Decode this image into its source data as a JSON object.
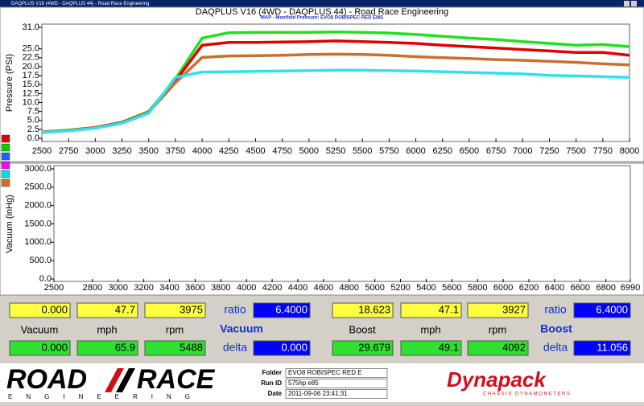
{
  "window_title": "DAQPLUS V16 (4WD - DAQPLUS 44) - Road Race Engineering",
  "chart_data": [
    {
      "type": "line",
      "title": "DAQPLUS V16 (4WD - DAQPLUS 44) - Road Race Engineering",
      "subtitle": "MAP - Manifold Pressure: EVO8 ROBISPEC RED EMS",
      "y_label": "Pressure (PSI)",
      "xlim": [
        2500,
        8000
      ],
      "ylim": [
        0,
        31
      ],
      "xticks": [
        2500,
        2750,
        3000,
        3250,
        3500,
        3750,
        4000,
        4250,
        4500,
        4750,
        5000,
        5250,
        5500,
        5750,
        6000,
        6250,
        6500,
        6750,
        7000,
        7250,
        7500,
        7750,
        8000
      ],
      "yticks": [
        {
          "value": 0,
          "label": "0.0"
        },
        {
          "value": 2.5,
          "label": "2.5"
        },
        {
          "value": 5,
          "label": "5.0"
        },
        {
          "value": 7.5,
          "label": "7.5"
        },
        {
          "value": 10,
          "label": "10.0"
        },
        {
          "value": 12.5,
          "label": "12.5"
        },
        {
          "value": 15,
          "label": "15.0"
        },
        {
          "value": 17.5,
          "label": "17.5"
        },
        {
          "value": 20,
          "label": "20.0"
        },
        {
          "value": 22.5,
          "label": "22.5"
        },
        {
          "value": 25,
          "label": "25.0"
        },
        {
          "value": 31,
          "label": "31.0"
        }
      ],
      "legend_colors": [
        "#e00000",
        "#00d000",
        "#2060ff",
        "#ff00ff",
        "#00e0e0",
        "#d07020"
      ],
      "x": [
        2500,
        2750,
        3000,
        3250,
        3500,
        3750,
        4000,
        4250,
        4500,
        4750,
        5000,
        5250,
        5500,
        5750,
        6000,
        6250,
        6500,
        6750,
        7000,
        7250,
        7500,
        7750,
        8000
      ],
      "series": [
        {
          "color": "#20e020",
          "values": [
            1.8,
            2.3,
            3.0,
            4.5,
            7.5,
            16.5,
            28.0,
            29.5,
            29.6,
            29.6,
            29.6,
            29.7,
            29.6,
            29.4,
            29.0,
            28.5,
            28.0,
            27.6,
            27.0,
            26.5,
            26.0,
            26.2,
            25.6
          ]
        },
        {
          "color": "#e00000",
          "values": [
            1.7,
            2.2,
            3.0,
            4.4,
            7.3,
            16.0,
            26.0,
            26.8,
            26.8,
            26.9,
            27.0,
            27.2,
            27.0,
            26.8,
            26.5,
            26.0,
            25.6,
            25.2,
            24.8,
            24.4,
            24.0,
            24.0,
            23.2
          ]
        },
        {
          "color": "#c87030",
          "values": [
            1.7,
            2.2,
            2.9,
            4.3,
            7.2,
            15.5,
            22.6,
            23.0,
            23.1,
            23.2,
            23.4,
            23.5,
            23.4,
            23.2,
            22.8,
            22.5,
            22.3,
            22.0,
            21.8,
            21.5,
            21.2,
            20.8,
            20.5
          ]
        },
        {
          "color": "#30e0f0",
          "values": [
            1.6,
            2.1,
            2.8,
            4.2,
            7.0,
            17.0,
            18.5,
            18.6,
            18.7,
            18.8,
            18.9,
            19.0,
            19.0,
            18.9,
            18.8,
            18.6,
            18.4,
            18.2,
            18.0,
            17.6,
            17.4,
            17.2,
            17.0
          ]
        }
      ]
    },
    {
      "type": "line",
      "y_label": "Vacuum (inHg)",
      "xlim": [
        2500,
        6990
      ],
      "ylim": [
        0,
        3000
      ],
      "xticks": [
        2500,
        2800,
        3000,
        3200,
        3400,
        3600,
        3800,
        4000,
        4200,
        4400,
        4600,
        4800,
        5000,
        5200,
        5400,
        5600,
        5800,
        6000,
        6200,
        6400,
        6600,
        6800,
        6990
      ],
      "yticks": [
        {
          "value": 0,
          "label": "0.0"
        },
        {
          "value": 500,
          "label": "500.0"
        },
        {
          "value": 1000,
          "label": "1000.0"
        },
        {
          "value": 1500,
          "label": "1500.0"
        },
        {
          "value": 2000,
          "label": "2000.0"
        },
        {
          "value": 2500,
          "label": "2500.0"
        },
        {
          "value": 3000,
          "label": "3000.0"
        }
      ],
      "x": [],
      "series": []
    }
  ],
  "readouts": [
    {
      "row1": [
        "0.000",
        "47.7",
        "3975"
      ],
      "ratio_label": "ratio",
      "ratio": "6.4000",
      "labels": [
        "Vacuum",
        "mph",
        "rpm"
      ],
      "group": "Vacuum",
      "row2": [
        "0.000",
        "65.9",
        "5488"
      ],
      "delta_label": "delta",
      "delta": "0.000"
    },
    {
      "row1": [
        "18.623",
        "47.1",
        "3927"
      ],
      "ratio_label": "ratio",
      "ratio": "6.4000",
      "labels": [
        "Boost",
        "mph",
        "rpm"
      ],
      "group": "Boost",
      "row2": [
        "29.679",
        "49.1",
        "4092"
      ],
      "delta_label": "delta",
      "delta": "11.056"
    }
  ],
  "footer": {
    "logo_left": "ROAD",
    "logo_right": "RACE",
    "logo_sub": "ENGINEERING",
    "fields": [
      {
        "label": "Folder",
        "value": "EVO8 ROBISPEC RED E"
      },
      {
        "label": "Run ID",
        "value": "575hp e85"
      },
      {
        "label": "Date",
        "value": "2011-09-06 23:41:31"
      }
    ],
    "brand": "Dynapack",
    "brand_sub": "CHASSIS DYNAMOMETERS"
  }
}
